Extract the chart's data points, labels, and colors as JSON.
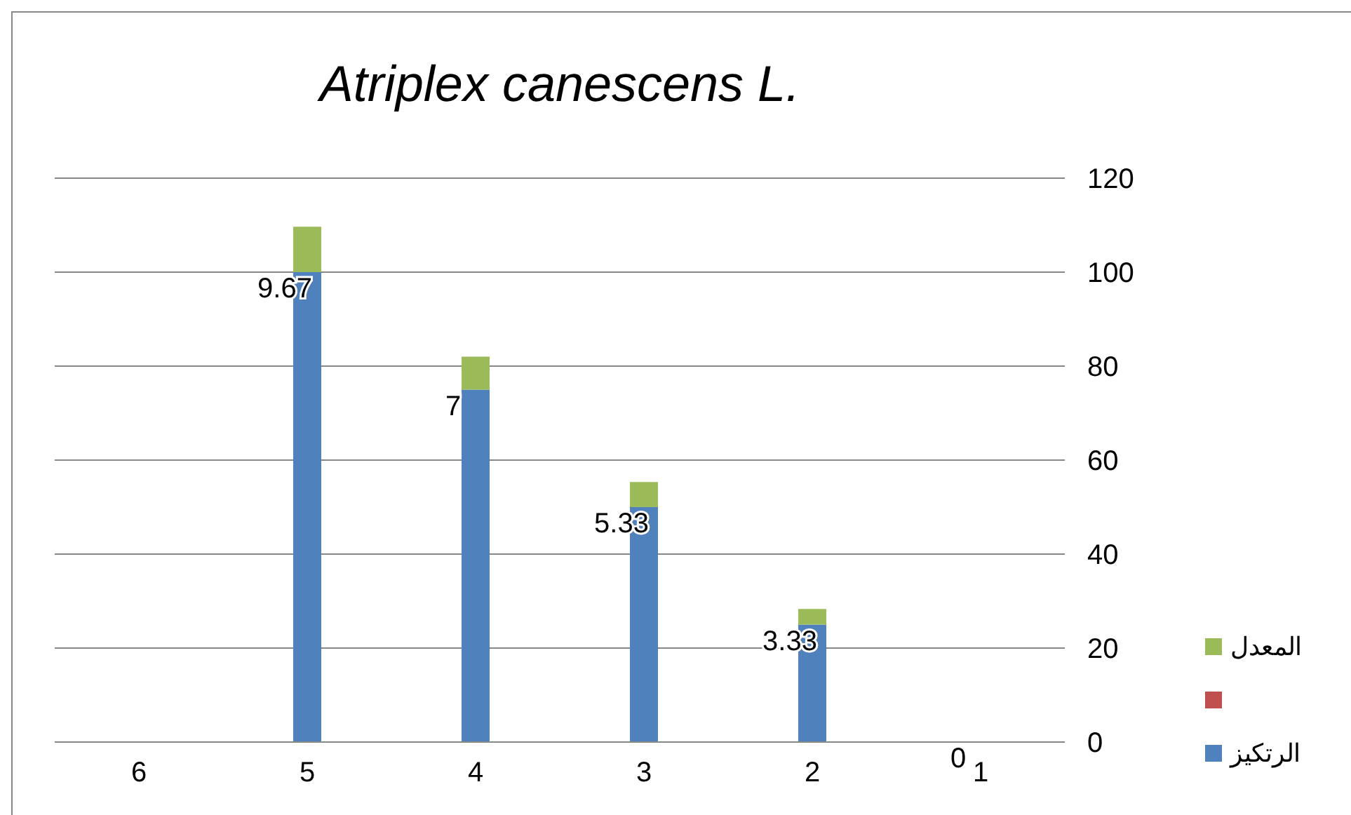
{
  "chart_data": {
    "type": "bar",
    "title": "Atriplex canescens L.",
    "categories": [
      "6",
      "5",
      "4",
      "3",
      "2",
      "1"
    ],
    "stacked": true,
    "series": [
      {
        "name": "الرتكيز",
        "color": "#4f81bd",
        "values": [
          null,
          100,
          75,
          50,
          25,
          0
        ]
      },
      {
        "color": "#c0504d",
        "values": [
          null,
          null,
          null,
          null,
          null,
          null
        ]
      },
      {
        "name": "المعدل",
        "color": "#9bbb59",
        "values": [
          null,
          9.67,
          7,
          5.33,
          3.33,
          0
        ],
        "value_labels": [
          null,
          "9.67",
          "7",
          "5.33",
          "3.33",
          "0"
        ]
      }
    ],
    "ylim": [
      0,
      120
    ],
    "yticks": [
      0,
      20,
      40,
      60,
      80,
      100,
      120
    ],
    "grid": "y",
    "legend": "right"
  }
}
